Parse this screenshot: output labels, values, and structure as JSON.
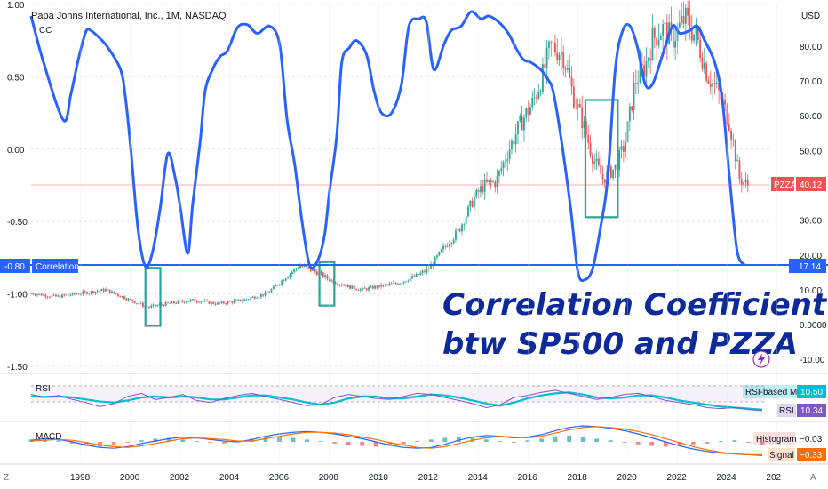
{
  "header": {
    "title": "Papa Johns International, Inc., 1M, NASDAQ",
    "subtitle": "CC"
  },
  "colors": {
    "background": "#ffffff",
    "grid": "#e0e3eb",
    "candle_up": "#26a69a",
    "candle_down": "#ef5350",
    "correlation_line": "#2962ff",
    "rsi_line": "#7e57c2",
    "rsi_ma": "#00bcd4",
    "macd_line": "#2962ff",
    "signal_line": "#ff6d00",
    "highlight_box": "#26a69a",
    "annotation_text": "#0d2a9b"
  },
  "chart_data": [
    {
      "type": "line",
      "title": "Papa Johns International, Inc., 1M, NASDAQ",
      "series": [
        {
          "name": "CC",
          "axis": "left",
          "x": [
            1996.0,
            1996.5,
            1997.3,
            1997.6,
            1997.9,
            1998.2,
            1998.4,
            1998.8,
            1999.1,
            1999.6,
            1999.8,
            2000.0,
            2000.3,
            2000.6,
            2000.9,
            2001.2,
            2001.5,
            2001.8,
            2002.0,
            2002.3,
            2002.5,
            2002.8,
            2003.0,
            2003.3,
            2003.6,
            2003.9,
            2004.3,
            2004.7,
            2005.1,
            2005.6,
            2006.0,
            2006.3,
            2006.6,
            2006.9,
            2007.2,
            2007.5,
            2007.8,
            2008.0,
            2008.3,
            2008.5,
            2008.8,
            2009.1,
            2009.5,
            2009.8,
            2010.1,
            2010.5,
            2010.9,
            2011.2,
            2011.6,
            2011.9,
            2012.2,
            2012.6,
            2012.9,
            2013.3,
            2013.7,
            2014.1,
            2014.4,
            2014.8,
            2015.2,
            2015.5,
            2015.8,
            2016.1,
            2016.5,
            2016.8,
            2017.0,
            2017.3,
            2017.7,
            2018.0,
            2018.3,
            2018.6,
            2018.9,
            2019.2,
            2019.5,
            2019.8,
            2020.1,
            2020.4,
            2020.7,
            2021.0,
            2021.4,
            2021.8,
            2022.1,
            2022.5,
            2022.8,
            2023.1,
            2023.5,
            2023.8,
            2024.1,
            2024.4,
            2024.7
          ],
          "y": [
            0.92,
            0.6,
            0.2,
            0.38,
            0.62,
            0.81,
            0.82,
            0.76,
            0.7,
            0.55,
            0.35,
            0.02,
            -0.55,
            -0.81,
            -0.7,
            -0.4,
            -0.03,
            -0.2,
            -0.4,
            -0.72,
            -0.38,
            0.05,
            0.4,
            0.55,
            0.64,
            0.68,
            0.84,
            0.86,
            0.8,
            0.85,
            0.72,
            0.2,
            -0.1,
            -0.5,
            -0.8,
            -0.78,
            -0.6,
            -0.3,
            0.1,
            0.6,
            0.7,
            0.75,
            0.65,
            0.4,
            0.25,
            0.25,
            0.45,
            0.85,
            0.9,
            0.88,
            0.55,
            0.72,
            0.82,
            0.85,
            0.95,
            0.9,
            0.92,
            0.88,
            0.8,
            0.7,
            0.62,
            0.6,
            0.55,
            0.48,
            0.4,
            0.1,
            -0.4,
            -0.85,
            -0.9,
            -0.82,
            -0.55,
            -0.2,
            0.55,
            0.82,
            0.85,
            0.7,
            0.45,
            0.45,
            0.65,
            0.85,
            0.8,
            0.82,
            0.85,
            0.75,
            0.6,
            0.35,
            -0.2,
            -0.7,
            -0.8
          ]
        }
      ],
      "ylim": [
        -1.5,
        1.0
      ],
      "xlim": [
        1996.0,
        2025.7
      ],
      "left_ticks": [
        "1.00",
        "0.50",
        "0.00",
        "-0.50",
        "-1.00",
        "-1.50"
      ],
      "right_ticks": [
        "USD",
        "80.00",
        "70.00",
        "60.00",
        "50.00",
        "40.00",
        "30.00",
        "20.00",
        "10.00",
        "0.0000",
        "-10.00"
      ],
      "x_ticks": [
        "1998",
        "2000",
        "2002",
        "2004",
        "2006",
        "2008",
        "2010",
        "2012",
        "2014",
        "2016",
        "2018",
        "2020",
        "2022",
        "2024",
        "202"
      ],
      "price_label": "PZZA",
      "price_value": "40.12",
      "correlation_label": "Correlation",
      "correlation_value": "-0.80",
      "corr_price_value": "17.14",
      "grid": true
    },
    {
      "type": "bar",
      "title": "Papa Johns International, Inc., 1M, NASDAQ",
      "series_name": "PZZA",
      "axis": "right",
      "anchors_x": [
        1996.0,
        1997.0,
        1998.0,
        1999.0,
        2000.0,
        2000.7,
        2001.5,
        2002.5,
        2003.5,
        2004.5,
        2005.5,
        2006.3,
        2006.8,
        2007.5,
        2008.0,
        2008.7,
        2009.3,
        2010.0,
        2010.8,
        2011.5,
        2012.0,
        2012.6,
        2013.2,
        2013.8,
        2014.2,
        2014.7,
        2015.2,
        2015.7,
        2016.2,
        2016.6,
        2016.9,
        2017.4,
        2017.8,
        2018.2,
        2018.6,
        2019.0,
        2019.5,
        2019.9,
        2020.3,
        2020.7,
        2021.0,
        2021.4,
        2021.8,
        2022.3,
        2022.8,
        2023.2,
        2023.7,
        2024.1,
        2024.5,
        2024.8
      ],
      "anchors_y": [
        9,
        8,
        9,
        10,
        7,
        5,
        6,
        7,
        6,
        7,
        9,
        14,
        17,
        15,
        13,
        11,
        10,
        11,
        12,
        14,
        16,
        22,
        27,
        36,
        40,
        41,
        50,
        58,
        64,
        72,
        80,
        78,
        66,
        58,
        48,
        42,
        45,
        52,
        70,
        74,
        82,
        85,
        82,
        88,
        82,
        72,
        66,
        58,
        42,
        40
      ],
      "ylim": [
        -12,
        92
      ]
    },
    {
      "type": "line",
      "title": "RSI",
      "series": [
        {
          "name": "RSI",
          "values": [
            56,
            50,
            54,
            46,
            40,
            32,
            38,
            52,
            58,
            46,
            50,
            56,
            44,
            40,
            48,
            54,
            58,
            52,
            46,
            40,
            34,
            36,
            50,
            56,
            52,
            48,
            46,
            52,
            58,
            56,
            50,
            44,
            38,
            30,
            36,
            50,
            54,
            60,
            64,
            58,
            52,
            46,
            50,
            56,
            58,
            52,
            44,
            40,
            36,
            30,
            28,
            30,
            26,
            24
          ]
        },
        {
          "name": "RSI-based MA",
          "values": [
            52,
            51,
            52,
            50,
            46,
            42,
            40,
            44,
            50,
            52,
            50,
            52,
            50,
            46,
            46,
            50,
            54,
            54,
            50,
            46,
            40,
            36,
            40,
            48,
            52,
            52,
            48,
            48,
            52,
            56,
            54,
            50,
            44,
            38,
            34,
            40,
            48,
            54,
            58,
            60,
            56,
            50,
            48,
            50,
            54,
            54,
            50,
            44,
            40,
            36,
            32,
            30,
            28,
            26
          ]
        }
      ],
      "label": "RSI",
      "ma_label": "RSI-based MA",
      "ma_value": "10.50",
      "rsi_value": "10.34"
    },
    {
      "type": "bar",
      "title": "MACD",
      "histogram": [
        0.3,
        0.5,
        0.2,
        -0.2,
        -0.5,
        -0.6,
        -0.4,
        -0.1,
        0.2,
        0.4,
        0.5,
        0.3,
        0.1,
        -0.1,
        -0.2,
        0.1,
        0.4,
        0.6,
        0.7,
        0.5,
        0.3,
        0.1,
        -0.2,
        -0.4,
        -0.5,
        -0.6,
        -0.5,
        -0.3,
        0.1,
        0.3,
        0.5,
        0.6,
        0.5,
        0.3,
        0.1,
        -0.1,
        0.2,
        0.4,
        0.7,
        0.8,
        0.6,
        0.4,
        0.2,
        -0.1,
        -0.3,
        -0.5,
        -0.6,
        -0.5,
        -0.3,
        -0.2,
        0.1,
        0.2,
        -0.1,
        -0.3
      ],
      "series": [
        {
          "name": "MACD",
          "values": [
            0.2,
            0.4,
            0.3,
            0.0,
            -0.4,
            -0.7,
            -0.8,
            -0.6,
            -0.2,
            0.1,
            0.4,
            0.6,
            0.5,
            0.3,
            0.1,
            0.0,
            0.3,
            0.7,
            1.0,
            1.2,
            1.3,
            1.2,
            1.0,
            0.7,
            0.4,
            0.0,
            -0.4,
            -0.7,
            -0.8,
            -0.7,
            -0.3,
            0.2,
            0.6,
            0.8,
            0.7,
            0.5,
            0.6,
            0.9,
            1.4,
            1.8,
            2.0,
            1.9,
            1.7,
            1.4,
            1.0,
            0.5,
            0.0,
            -0.5,
            -0.9,
            -1.2,
            -1.4,
            -1.5,
            -1.6,
            -1.7
          ]
        },
        {
          "name": "Signal",
          "values": [
            0.1,
            0.2,
            0.3,
            0.2,
            -0.1,
            -0.4,
            -0.6,
            -0.7,
            -0.5,
            -0.2,
            0.1,
            0.4,
            0.5,
            0.4,
            0.3,
            0.1,
            0.1,
            0.4,
            0.7,
            1.0,
            1.2,
            1.2,
            1.1,
            0.9,
            0.6,
            0.3,
            -0.1,
            -0.4,
            -0.7,
            -0.8,
            -0.6,
            -0.2,
            0.2,
            0.5,
            0.7,
            0.6,
            0.5,
            0.7,
            1.1,
            1.5,
            1.8,
            1.9,
            1.8,
            1.6,
            1.3,
            0.9,
            0.4,
            -0.1,
            -0.6,
            -1.0,
            -1.3,
            -1.5,
            -1.6,
            -1.6
          ]
        }
      ],
      "label": "MACD",
      "hist_label": "Histogram",
      "hist_value": "−0.03",
      "signal_label": "Signal",
      "signal_value": "−0.33"
    }
  ],
  "annotation": {
    "line1": "Correlation Coefficient",
    "line2": "btw SP500 and PZZA"
  },
  "highlight_boxes": [
    {
      "x_from": 2000.6,
      "x_to": 2001.2,
      "y_from": -1.22,
      "y_to": -0.82
    },
    {
      "x_from": 2007.6,
      "x_to": 2008.2,
      "y_from": -1.08,
      "y_to": -0.78
    },
    {
      "x_from": 2018.3,
      "x_to": 2019.6,
      "y_from": -0.47,
      "y_to": 0.34
    }
  ],
  "footer": {
    "z_icon": "Z",
    "a_icon": "A"
  }
}
